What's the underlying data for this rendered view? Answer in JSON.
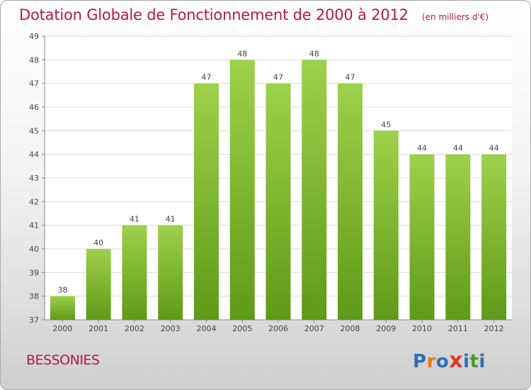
{
  "chart_data": {
    "type": "bar",
    "title": "Dotation Globale de Fonctionnement de 2000 à 2012",
    "unit_label": "(en milliers d'€)",
    "categories": [
      "2000",
      "2001",
      "2002",
      "2003",
      "2004",
      "2005",
      "2006",
      "2007",
      "2008",
      "2009",
      "2010",
      "2011",
      "2012"
    ],
    "values": [
      38,
      40,
      41,
      41,
      47,
      48,
      47,
      48,
      47,
      45,
      44,
      44,
      44
    ],
    "ylim": [
      37,
      49
    ],
    "yticks": [
      37,
      38,
      39,
      40,
      41,
      42,
      43,
      44,
      45,
      46,
      47,
      48,
      49
    ],
    "grid": true,
    "bar_color_top": "#9ed14b",
    "bar_color_bottom": "#5f9a18"
  },
  "commune": "BESSONIES",
  "logo": {
    "letters": [
      "P",
      "r",
      "o",
      "x",
      "i",
      "t",
      "i"
    ],
    "colors": [
      "#2f6fb5",
      "#e07b1a",
      "#2f6fb5",
      "#e03a2a",
      "#2f6fb5",
      "#4a9a2a",
      "#2f6fb5"
    ]
  }
}
